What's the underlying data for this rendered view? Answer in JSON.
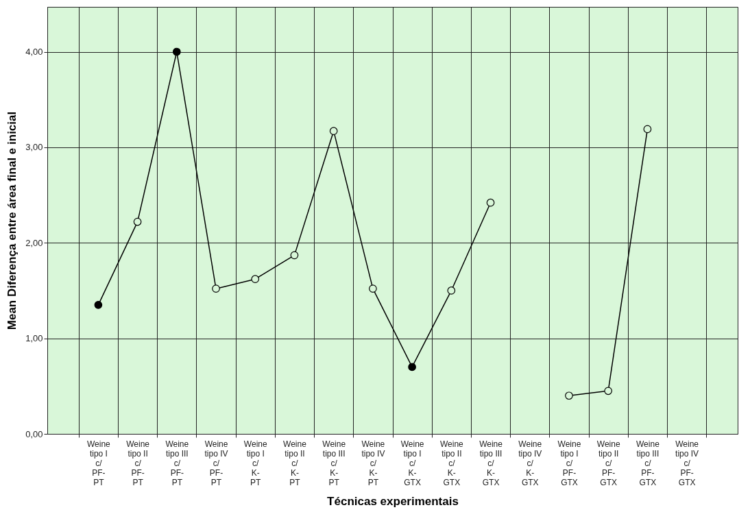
{
  "chart_data": {
    "type": "line",
    "xlabel": "Técnicas experimentais",
    "ylabel": "Mean Diferença entre área final e inicial",
    "categories": [
      "Weine\ntipo I\nc/\nPF-\nPT",
      "Weine\ntipo II\nc/\nPF-\nPT",
      "Weine\ntipo III\nc/\nPF-\nPT",
      "Weine\ntipo IV\nc/\nPF-\nPT",
      "Weine\ntipo I\nc/\nK-\nPT",
      "Weine\ntipo II\nc/\nK-\nPT",
      "Weine\ntipo III\nc/\nK-\nPT",
      "Weine\ntipo IV\nc/\nK-\nPT",
      "Weine\ntipo I\nc/\nK-\nGTX",
      "Weine\ntipo II\nc/\nK-\nGTX",
      "Weine\ntipo III\nc/\nK-\nGTX",
      "Weine\ntipo IV\nc/\nK-\nGTX",
      "Weine\ntipo I\nc/\nPF-\nGTX",
      "Weine\ntipo II\nc/\nPF-\nGTX",
      "Weine\ntipo III\nc/\nPF-\nGTX",
      "Weine\ntipo IV\nc/\nPF-\nGTX"
    ],
    "series": [
      {
        "color": "#000000",
        "values": [
          1.35,
          2.22,
          4.0,
          1.52,
          1.62,
          1.87,
          3.17,
          1.52,
          0.7,
          1.5,
          2.42,
          null,
          0.4,
          0.45,
          3.19,
          null
        ],
        "colors": [
          "#000000",
          "#d9f7d9",
          "#000000",
          "#d9f7d9",
          "#d9f7d9",
          "#d9f7d9",
          "#d9f7d9",
          "#d9f7d9",
          "#000000",
          "#d9f7d9",
          "#d9f7d9",
          "#d9f7d9",
          "#d9f7d9",
          "#d9f7d9",
          "#d9f7d9",
          "#d9f7d9"
        ]
      }
    ],
    "ylim": [
      0,
      4.47
    ],
    "yticks": [
      {
        "value": 0,
        "label": "0,00"
      },
      {
        "value": 1,
        "label": "1,00"
      },
      {
        "value": 2,
        "label": "2,00"
      },
      {
        "value": 3,
        "label": "3,00"
      },
      {
        "value": 4,
        "label": "4,00"
      }
    ],
    "grid": true,
    "marker": "circle",
    "line_style": "solid"
  }
}
